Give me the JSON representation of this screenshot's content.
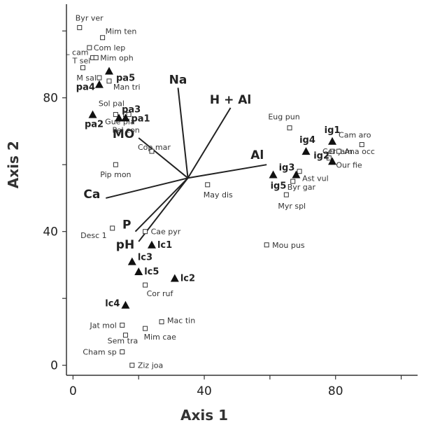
{
  "chart_data": {
    "type": "scatter",
    "xlabel": "Axis 1",
    "ylabel": "Axis 2",
    "xlim": [
      -2,
      105
    ],
    "ylim": [
      -3,
      108
    ],
    "xticks": [
      0,
      40,
      80
    ],
    "yticks": [
      0,
      40,
      80
    ],
    "grid": false,
    "origin": [
      35,
      56
    ],
    "species": [
      {
        "label": "Byr ver",
        "x": 2,
        "y": 101
      },
      {
        "label": "Mim ten",
        "x": 9,
        "y": 98
      },
      {
        "label": "Com lep",
        "x": 5,
        "y": 95
      },
      {
        "label": "L cam",
        "x": 6,
        "y": 92
      },
      {
        "label": "Mim oph",
        "x": 7,
        "y": 92
      },
      {
        "label": "T sel",
        "x": 3,
        "y": 89
      },
      {
        "label": "M sal",
        "x": 8,
        "y": 86
      },
      {
        "label": "Man tri",
        "x": 11,
        "y": 85
      },
      {
        "label": "Sol pal",
        "x": 13,
        "y": 75
      },
      {
        "label": "Gue pla",
        "x": 16,
        "y": 75
      },
      {
        "label": "Pel con",
        "x": 17,
        "y": 75
      },
      {
        "label": "Cop mar",
        "x": 24,
        "y": 64
      },
      {
        "label": "Pip mon",
        "x": 13,
        "y": 60
      },
      {
        "label": "May dis",
        "x": 41,
        "y": 54
      },
      {
        "label": "Eug pun",
        "x": 66,
        "y": 71
      },
      {
        "label": "Cam aro",
        "x": 88,
        "y": 66
      },
      {
        "label": "Cer jam",
        "x": 79,
        "y": 64
      },
      {
        "label": "Ana occ",
        "x": 81,
        "y": 64
      },
      {
        "label": "Our fie",
        "x": 78,
        "y": 62
      },
      {
        "label": "Ast vul",
        "x": 69,
        "y": 58
      },
      {
        "label": "Byr gar",
        "x": 67,
        "y": 55
      },
      {
        "label": "Myr spl",
        "x": 65,
        "y": 51
      },
      {
        "label": "Mou pus",
        "x": 59,
        "y": 36
      },
      {
        "label": "Desc 1",
        "x": 12,
        "y": 41
      },
      {
        "label": "Cae pyr",
        "x": 22,
        "y": 40
      },
      {
        "label": "Cor ruf",
        "x": 22,
        "y": 24
      },
      {
        "label": "Mac tin",
        "x": 27,
        "y": 13
      },
      {
        "label": "Jat mol",
        "x": 15,
        "y": 12
      },
      {
        "label": "Mim cae",
        "x": 22,
        "y": 11
      },
      {
        "label": "Sem tra",
        "x": 16,
        "y": 9
      },
      {
        "label": "Cham sp",
        "x": 15,
        "y": 4
      },
      {
        "label": "Ziz joa",
        "x": 18,
        "y": 0
      }
    ],
    "sites": [
      {
        "label": "pa5",
        "x": 11,
        "y": 88
      },
      {
        "label": "pa4",
        "x": 8,
        "y": 84
      },
      {
        "label": "pa3",
        "x": 14,
        "y": 74
      },
      {
        "label": "pa1",
        "x": 16,
        "y": 74
      },
      {
        "label": "pa2",
        "x": 6,
        "y": 75
      },
      {
        "label": "ig1",
        "x": 79,
        "y": 67
      },
      {
        "label": "ig4",
        "x": 71,
        "y": 64
      },
      {
        "label": "ig2",
        "x": 79,
        "y": 61
      },
      {
        "label": "ig3",
        "x": 68,
        "y": 57
      },
      {
        "label": "ig5",
        "x": 61,
        "y": 57
      },
      {
        "label": "lc1",
        "x": 24,
        "y": 36
      },
      {
        "label": "lc3",
        "x": 18,
        "y": 31
      },
      {
        "label": "lc5",
        "x": 20,
        "y": 28
      },
      {
        "label": "lc2",
        "x": 31,
        "y": 26
      },
      {
        "label": "lc4",
        "x": 16,
        "y": 18
      }
    ],
    "vectors": [
      {
        "label": "Na",
        "x": 32,
        "y": 83
      },
      {
        "label": "H + Al",
        "x": 48,
        "y": 77
      },
      {
        "label": "Al",
        "x": 59,
        "y": 60
      },
      {
        "label": "MO",
        "x": 20,
        "y": 68
      },
      {
        "label": "Ca",
        "x": 10,
        "y": 50
      },
      {
        "label": "P",
        "x": 19,
        "y": 40
      },
      {
        "label": "pH",
        "x": 20,
        "y": 37
      }
    ]
  }
}
